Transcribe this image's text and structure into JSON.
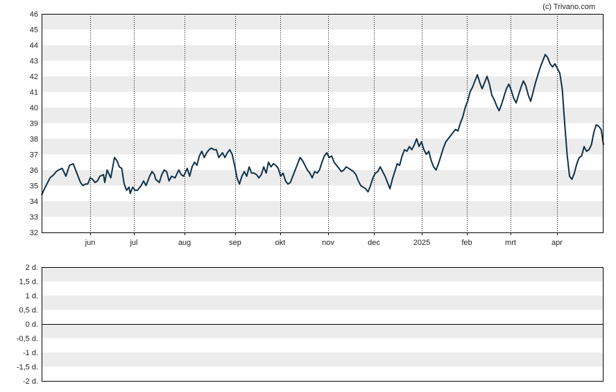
{
  "copyright": "(c) Trivano.com",
  "colors": {
    "line": "#0d3048",
    "band": "#ececec",
    "background": "#ffffff",
    "grid": "#000000"
  },
  "chart_data": [
    {
      "type": "line",
      "title": "",
      "xlabel": "",
      "ylabel": "",
      "ylim": [
        32,
        46
      ],
      "yticks": [
        32,
        33,
        34,
        35,
        36,
        37,
        38,
        39,
        40,
        41,
        42,
        43,
        44,
        45,
        46
      ],
      "grid": "vertical dotted lines at month starts, alternating horizontal bands",
      "xticks": [
        "jun",
        "jul",
        "aug",
        "sep",
        "okt",
        "nov",
        "dec",
        "2025",
        "feb",
        "mrt",
        "apr"
      ],
      "series": [
        {
          "values": [
            [
              0,
              34.4
            ],
            [
              3,
              34.9
            ],
            [
              7,
              35.5
            ],
            [
              10,
              35.7
            ],
            [
              12,
              35.9
            ],
            [
              14,
              36.0
            ],
            [
              17,
              36.1
            ],
            [
              20,
              35.6
            ],
            [
              23,
              36.3
            ],
            [
              26,
              36.4
            ],
            [
              28,
              36.0
            ],
            [
              32,
              35.2
            ],
            [
              34,
              35.0
            ],
            [
              36,
              35.1
            ],
            [
              38,
              35.1
            ],
            [
              40,
              35.5
            ],
            [
              42,
              35.4
            ],
            [
              44,
              35.2
            ],
            [
              46,
              35.3
            ],
            [
              48,
              35.6
            ],
            [
              51,
              35.7
            ],
            [
              52,
              35.2
            ],
            [
              54,
              36.0
            ],
            [
              57,
              35.5
            ],
            [
              60,
              36.8
            ],
            [
              62,
              36.6
            ],
            [
              64,
              36.2
            ],
            [
              66,
              36.1
            ],
            [
              68,
              35.1
            ],
            [
              70,
              34.7
            ],
            [
              72,
              34.9
            ],
            [
              73,
              34.5
            ],
            [
              75,
              34.9
            ],
            [
              77,
              34.7
            ],
            [
              79,
              34.7
            ],
            [
              82,
              35.0
            ],
            [
              84,
              35.3
            ],
            [
              86,
              35.0
            ],
            [
              89,
              35.6
            ],
            [
              91,
              35.9
            ],
            [
              93,
              35.7
            ],
            [
              94,
              35.4
            ],
            [
              97,
              35.2
            ],
            [
              99,
              35.7
            ],
            [
              101,
              36.0
            ],
            [
              103,
              35.9
            ],
            [
              105,
              35.3
            ],
            [
              107,
              35.6
            ],
            [
              110,
              35.5
            ],
            [
              113,
              36.0
            ],
            [
              115,
              35.7
            ],
            [
              117,
              35.6
            ],
            [
              120,
              36.1
            ],
            [
              122,
              35.6
            ],
            [
              124,
              36.2
            ],
            [
              126,
              36.5
            ],
            [
              128,
              36.3
            ],
            [
              130,
              36.9
            ],
            [
              132,
              37.2
            ],
            [
              134,
              36.8
            ],
            [
              136,
              37.1
            ],
            [
              138,
              37.3
            ],
            [
              140,
              37.4
            ],
            [
              142,
              37.3
            ],
            [
              144,
              37.3
            ],
            [
              146,
              36.8
            ],
            [
              149,
              37.1
            ],
            [
              151,
              36.8
            ],
            [
              153,
              37.1
            ],
            [
              155,
              37.3
            ],
            [
              157,
              37.0
            ],
            [
              159,
              36.3
            ],
            [
              161,
              35.5
            ],
            [
              163,
              35.1
            ],
            [
              165,
              35.6
            ],
            [
              167,
              35.9
            ],
            [
              169,
              35.6
            ],
            [
              171,
              36.2
            ],
            [
              173,
              35.8
            ],
            [
              175,
              35.8
            ],
            [
              177,
              35.7
            ],
            [
              179,
              35.5
            ],
            [
              181,
              35.7
            ],
            [
              183,
              36.2
            ],
            [
              185,
              35.8
            ],
            [
              187,
              36.5
            ],
            [
              189,
              36.2
            ],
            [
              191,
              36.4
            ],
            [
              193,
              36.3
            ],
            [
              195,
              36.1
            ],
            [
              197,
              35.6
            ],
            [
              199,
              35.8
            ],
            [
              201,
              35.3
            ],
            [
              203,
              35.1
            ],
            [
              205,
              35.2
            ],
            [
              207,
              35.6
            ],
            [
              209,
              36.0
            ],
            [
              211,
              36.4
            ],
            [
              213,
              36.8
            ],
            [
              215,
              36.6
            ],
            [
              217,
              36.3
            ],
            [
              219,
              36.0
            ],
            [
              221,
              35.8
            ],
            [
              223,
              35.5
            ],
            [
              225,
              35.9
            ],
            [
              227,
              35.8
            ],
            [
              229,
              36.0
            ],
            [
              231,
              36.5
            ],
            [
              233,
              36.9
            ],
            [
              235,
              37.1
            ],
            [
              237,
              36.8
            ],
            [
              239,
              36.9
            ],
            [
              241,
              36.5
            ],
            [
              243,
              36.3
            ],
            [
              245,
              36.1
            ],
            [
              247,
              35.9
            ],
            [
              249,
              36.0
            ],
            [
              251,
              36.2
            ],
            [
              253,
              36.1
            ],
            [
              255,
              36.0
            ],
            [
              257,
              35.9
            ],
            [
              259,
              35.7
            ],
            [
              261,
              35.3
            ],
            [
              263,
              35.0
            ],
            [
              265,
              34.9
            ],
            [
              267,
              34.8
            ],
            [
              269,
              34.6
            ],
            [
              271,
              35.0
            ],
            [
              273,
              35.5
            ],
            [
              275,
              35.8
            ],
            [
              277,
              35.9
            ],
            [
              279,
              36.2
            ],
            [
              281,
              35.9
            ],
            [
              283,
              35.6
            ],
            [
              285,
              35.2
            ],
            [
              287,
              34.8
            ],
            [
              289,
              35.4
            ],
            [
              291,
              35.9
            ],
            [
              293,
              36.4
            ],
            [
              295,
              36.3
            ],
            [
              297,
              36.9
            ],
            [
              299,
              37.3
            ],
            [
              301,
              37.2
            ],
            [
              303,
              37.5
            ],
            [
              305,
              37.3
            ],
            [
              307,
              37.6
            ],
            [
              309,
              38.0
            ],
            [
              311,
              37.5
            ],
            [
              313,
              37.8
            ],
            [
              315,
              37.3
            ],
            [
              317,
              37.0
            ],
            [
              319,
              37.2
            ],
            [
              321,
              36.6
            ],
            [
              323,
              36.2
            ],
            [
              325,
              36.0
            ],
            [
              327,
              36.4
            ],
            [
              329,
              36.9
            ],
            [
              331,
              37.4
            ],
            [
              333,
              37.8
            ],
            [
              335,
              38.0
            ],
            [
              337,
              38.2
            ],
            [
              339,
              38.4
            ],
            [
              341,
              38.6
            ],
            [
              343,
              38.5
            ],
            [
              345,
              39.0
            ],
            [
              347,
              39.4
            ],
            [
              349,
              40.0
            ],
            [
              351,
              40.4
            ],
            [
              353,
              41.0
            ],
            [
              355,
              41.3
            ],
            [
              357,
              41.7
            ],
            [
              359,
              42.1
            ],
            [
              361,
              41.6
            ],
            [
              363,
              41.2
            ],
            [
              365,
              41.6
            ],
            [
              367,
              42.0
            ],
            [
              369,
              41.5
            ],
            [
              371,
              40.8
            ],
            [
              373,
              40.5
            ],
            [
              375,
              40.1
            ],
            [
              377,
              39.8
            ],
            [
              379,
              40.2
            ],
            [
              381,
              40.7
            ],
            [
              383,
              41.2
            ],
            [
              385,
              41.5
            ],
            [
              387,
              41.1
            ],
            [
              389,
              40.6
            ],
            [
              391,
              40.3
            ],
            [
              393,
              40.8
            ],
            [
              395,
              41.3
            ],
            [
              397,
              41.7
            ],
            [
              399,
              41.4
            ],
            [
              401,
              40.8
            ],
            [
              403,
              40.4
            ],
            [
              405,
              41.0
            ],
            [
              407,
              41.6
            ],
            [
              409,
              42.1
            ],
            [
              411,
              42.6
            ],
            [
              413,
              43.0
            ],
            [
              415,
              43.4
            ],
            [
              417,
              43.2
            ],
            [
              419,
              42.8
            ],
            [
              421,
              42.6
            ],
            [
              423,
              42.8
            ],
            [
              425,
              42.5
            ],
            [
              427,
              42.2
            ],
            [
              429,
              41.2
            ],
            [
              431,
              39.0
            ],
            [
              433,
              37.0
            ],
            [
              435,
              35.6
            ],
            [
              437,
              35.4
            ],
            [
              439,
              35.8
            ],
            [
              441,
              36.4
            ],
            [
              443,
              36.8
            ],
            [
              445,
              36.9
            ],
            [
              447,
              37.5
            ],
            [
              449,
              37.2
            ],
            [
              451,
              37.3
            ],
            [
              453,
              37.6
            ],
            [
              455,
              38.4
            ],
            [
              457,
              38.9
            ],
            [
              459,
              38.8
            ],
            [
              461,
              38.6
            ],
            [
              463,
              37.6
            ]
          ]
        }
      ]
    },
    {
      "type": "line",
      "title": "",
      "xlabel": "",
      "ylabel": "",
      "ylim": [
        -2,
        2
      ],
      "yticks": [
        "2 d.",
        "1,5 d.",
        "1 d.",
        "0,5 d.",
        "0 d.",
        "-0,5 d.",
        "-1 d.",
        "-1,5 d.",
        "-2 d."
      ],
      "series": [
        {
          "values": []
        }
      ]
    }
  ]
}
